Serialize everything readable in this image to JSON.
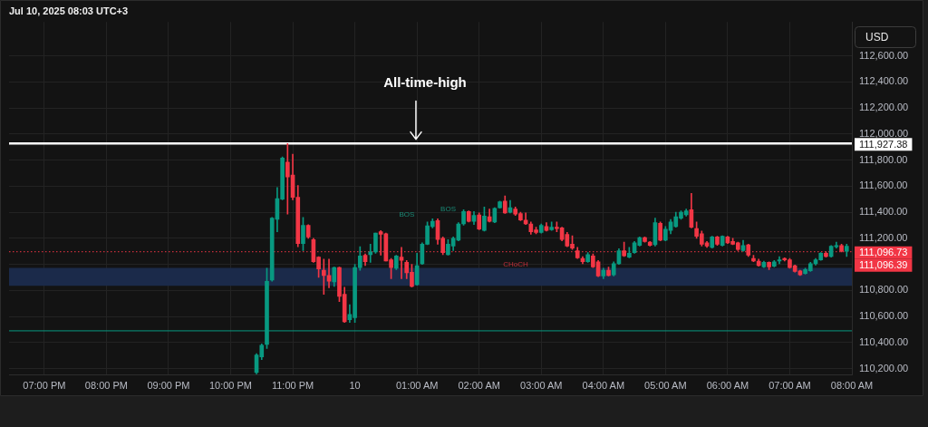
{
  "chart_data": {
    "type": "candlestick",
    "title": "Jul 10, 2025 08:03 UTC+3",
    "ylabel": "USD",
    "x": [
      "2025-07-09T22:25",
      "2025-07-09T22:30",
      "2025-07-09T22:35",
      "2025-07-09T22:40",
      "2025-07-09T22:45",
      "2025-07-09T22:50",
      "2025-07-09T22:55",
      "2025-07-09T23:00",
      "2025-07-09T23:05",
      "2025-07-09T23:10",
      "2025-07-09T23:15",
      "2025-07-09T23:20",
      "2025-07-09T23:25",
      "2025-07-09T23:30",
      "2025-07-09T23:35",
      "2025-07-09T23:40",
      "2025-07-09T23:45",
      "2025-07-09T23:50",
      "2025-07-09T23:55",
      "2025-07-10T00:00",
      "2025-07-10T00:05",
      "2025-07-10T00:10",
      "2025-07-10T00:15",
      "2025-07-10T00:20",
      "2025-07-10T00:25",
      "2025-07-10T00:30",
      "2025-07-10T00:35",
      "2025-07-10T00:40",
      "2025-07-10T00:45",
      "2025-07-10T00:50",
      "2025-07-10T00:55",
      "2025-07-10T01:00",
      "2025-07-10T01:05",
      "2025-07-10T01:10",
      "2025-07-10T01:15",
      "2025-07-10T01:20",
      "2025-07-10T01:25",
      "2025-07-10T01:30",
      "2025-07-10T01:35",
      "2025-07-10T01:40",
      "2025-07-10T01:45",
      "2025-07-10T01:50",
      "2025-07-10T01:55",
      "2025-07-10T02:00",
      "2025-07-10T02:05",
      "2025-07-10T02:10",
      "2025-07-10T02:15",
      "2025-07-10T02:20",
      "2025-07-10T02:25",
      "2025-07-10T02:30",
      "2025-07-10T02:35",
      "2025-07-10T02:40",
      "2025-07-10T02:45",
      "2025-07-10T02:50",
      "2025-07-10T02:55",
      "2025-07-10T03:00",
      "2025-07-10T03:05",
      "2025-07-10T03:10",
      "2025-07-10T03:15",
      "2025-07-10T03:20",
      "2025-07-10T03:25",
      "2025-07-10T03:30",
      "2025-07-10T03:35",
      "2025-07-10T03:40",
      "2025-07-10T03:45",
      "2025-07-10T03:50",
      "2025-07-10T03:55",
      "2025-07-10T04:00",
      "2025-07-10T04:05",
      "2025-07-10T04:10",
      "2025-07-10T04:15",
      "2025-07-10T04:20",
      "2025-07-10T04:25",
      "2025-07-10T04:30",
      "2025-07-10T04:35",
      "2025-07-10T04:40",
      "2025-07-10T04:45",
      "2025-07-10T04:50",
      "2025-07-10T04:55",
      "2025-07-10T05:00",
      "2025-07-10T05:05",
      "2025-07-10T05:10",
      "2025-07-10T05:15",
      "2025-07-10T05:20",
      "2025-07-10T05:25",
      "2025-07-10T05:30",
      "2025-07-10T05:35",
      "2025-07-10T05:40",
      "2025-07-10T05:45",
      "2025-07-10T05:50",
      "2025-07-10T05:55",
      "2025-07-10T06:00",
      "2025-07-10T06:05",
      "2025-07-10T06:10",
      "2025-07-10T06:15",
      "2025-07-10T06:20",
      "2025-07-10T06:25",
      "2025-07-10T06:30",
      "2025-07-10T06:35",
      "2025-07-10T06:40",
      "2025-07-10T06:45",
      "2025-07-10T06:50",
      "2025-07-10T06:55",
      "2025-07-10T07:00",
      "2025-07-10T07:05",
      "2025-07-10T07:10",
      "2025-07-10T07:15",
      "2025-07-10T07:20",
      "2025-07-10T07:25",
      "2025-07-10T07:30",
      "2025-07-10T07:35",
      "2025-07-10T07:40",
      "2025-07-10T07:45",
      "2025-07-10T07:50",
      "2025-07-10T07:55"
    ],
    "ohlc": [
      [
        110170,
        110315,
        110160,
        110305
      ],
      [
        110290,
        110390,
        110270,
        110380
      ],
      [
        110385,
        110970,
        110355,
        110870
      ],
      [
        110880,
        111360,
        110870,
        111355
      ],
      [
        111345,
        111590,
        111250,
        111505
      ],
      [
        111500,
        111825,
        111495,
        111815
      ],
      [
        111785,
        111927,
        111385,
        111670
      ],
      [
        111685,
        111845,
        111495,
        111515
      ],
      [
        111515,
        111605,
        111135,
        111160
      ],
      [
        111160,
        111360,
        111105,
        111300
      ],
      [
        111300,
        111305,
        111200,
        111210
      ],
      [
        111190,
        111200,
        111015,
        111020
      ],
      [
        111055,
        111060,
        110900,
        110965
      ],
      [
        110955,
        111040,
        110770,
        110915
      ],
      [
        110915,
        111040,
        110820,
        110870
      ],
      [
        110865,
        110980,
        110830,
        110975
      ],
      [
        110975,
        110980,
        110715,
        110755
      ],
      [
        110770,
        110825,
        110555,
        110560
      ],
      [
        110575,
        110690,
        110555,
        110615
      ],
      [
        110590,
        111000,
        110555,
        110975
      ],
      [
        110975,
        111135,
        110955,
        111065
      ],
      [
        111070,
        111080,
        110990,
        111020
      ],
      [
        111075,
        111155,
        111015,
        111095
      ],
      [
        111095,
        111240,
        111085,
        111240
      ],
      [
        111250,
        111260,
        111070,
        111230
      ],
      [
        111235,
        111240,
        111025,
        111025
      ],
      [
        111035,
        111045,
        110890,
        110975
      ],
      [
        110970,
        111070,
        110960,
        111065
      ],
      [
        111055,
        111130,
        110890,
        111030
      ],
      [
        111015,
        111030,
        110890,
        110935
      ],
      [
        110940,
        111000,
        110825,
        110830
      ],
      [
        110845,
        111085,
        110840,
        110990
      ],
      [
        111005,
        111165,
        111000,
        111155
      ],
      [
        111155,
        111325,
        111150,
        111295
      ],
      [
        111290,
        111350,
        111280,
        111330
      ],
      [
        111335,
        111350,
        111155,
        111190
      ],
      [
        111200,
        111210,
        111075,
        111090
      ],
      [
        111075,
        111190,
        111070,
        111155
      ],
      [
        111140,
        111210,
        111105,
        111200
      ],
      [
        111185,
        111320,
        111180,
        111310
      ],
      [
        111310,
        111420,
        111300,
        111405
      ],
      [
        111405,
        111410,
        111325,
        111330
      ],
      [
        111330,
        111405,
        111305,
        111375
      ],
      [
        111380,
        111395,
        111265,
        111270
      ],
      [
        111260,
        111440,
        111255,
        111370
      ],
      [
        111365,
        111425,
        111325,
        111330
      ],
      [
        111325,
        111435,
        111320,
        111430
      ],
      [
        111435,
        111485,
        111430,
        111480
      ],
      [
        111485,
        111525,
        111390,
        111395
      ],
      [
        111400,
        111490,
        111395,
        111435
      ],
      [
        111425,
        111440,
        111375,
        111385
      ],
      [
        111390,
        111400,
        111335,
        111340
      ],
      [
        111340,
        111395,
        111305,
        111310
      ],
      [
        111310,
        111325,
        111230,
        111250
      ],
      [
        111265,
        111285,
        111235,
        111245
      ],
      [
        111245,
        111310,
        111240,
        111300
      ],
      [
        111290,
        111320,
        111255,
        111260
      ],
      [
        111265,
        111325,
        111260,
        111285
      ],
      [
        111285,
        111325,
        111250,
        111275
      ],
      [
        111280,
        111285,
        111180,
        111190
      ],
      [
        111230,
        111245,
        111135,
        111140
      ],
      [
        111155,
        111220,
        111115,
        111125
      ],
      [
        111105,
        111130,
        111045,
        111050
      ],
      [
        111045,
        111060,
        111005,
        111020
      ],
      [
        111020,
        111090,
        111015,
        111075
      ],
      [
        111065,
        111080,
        110975,
        110980
      ],
      [
        111020,
        111030,
        110905,
        110910
      ],
      [
        110910,
        110970,
        110890,
        110955
      ],
      [
        110955,
        110980,
        110910,
        110915
      ],
      [
        110920,
        111020,
        110910,
        111005
      ],
      [
        111005,
        111120,
        111000,
        111105
      ],
      [
        111105,
        111170,
        111060,
        111065
      ],
      [
        111055,
        111130,
        111050,
        111085
      ],
      [
        111090,
        111175,
        111085,
        111165
      ],
      [
        111145,
        111210,
        111140,
        111205
      ],
      [
        111205,
        111210,
        111170,
        111175
      ],
      [
        111170,
        111175,
        111140,
        111145
      ],
      [
        111150,
        111355,
        111140,
        111320
      ],
      [
        111315,
        111325,
        111180,
        111185
      ],
      [
        111185,
        111290,
        111180,
        111270
      ],
      [
        111260,
        111345,
        111235,
        111325
      ],
      [
        111290,
        111400,
        111285,
        111365
      ],
      [
        111355,
        111410,
        111345,
        111400
      ],
      [
        111380,
        111425,
        111370,
        111410
      ],
      [
        111420,
        111545,
        111280,
        111285
      ],
      [
        111275,
        111325,
        111200,
        111215
      ],
      [
        111235,
        111255,
        111140,
        111155
      ],
      [
        111165,
        111175,
        111130,
        111140
      ],
      [
        111130,
        111215,
        111125,
        111210
      ],
      [
        111210,
        111215,
        111145,
        111155
      ],
      [
        111145,
        111220,
        111140,
        111215
      ],
      [
        111210,
        111215,
        111160,
        111165
      ],
      [
        111175,
        111200,
        111150,
        111155
      ],
      [
        111165,
        111170,
        111105,
        111115
      ],
      [
        111105,
        111185,
        111100,
        111145
      ],
      [
        111150,
        111155,
        111060,
        111070
      ],
      [
        111045,
        111070,
        111020,
        111025
      ],
      [
        111025,
        111040,
        110985,
        110990
      ],
      [
        110980,
        111025,
        110975,
        111015
      ],
      [
        111015,
        111020,
        110960,
        110980
      ],
      [
        110985,
        111030,
        110980,
        111020
      ],
      [
        111025,
        111060,
        111005,
        111035
      ],
      [
        111045,
        111050,
        111025,
        111035
      ],
      [
        111035,
        111045,
        110970,
        110975
      ],
      [
        110990,
        110995,
        110940,
        110945
      ],
      [
        110950,
        110955,
        110915,
        110920
      ],
      [
        110930,
        110970,
        110925,
        110960
      ],
      [
        110950,
        111015,
        110945,
        111005
      ],
      [
        111005,
        111045,
        110995,
        111035
      ],
      [
        111035,
        111090,
        111030,
        111085
      ],
      [
        111085,
        111095,
        111055,
        111060
      ],
      [
        111060,
        111145,
        111055,
        111140
      ],
      [
        111135,
        111170,
        111125,
        111145
      ],
      [
        111145,
        111155,
        111095,
        111100
      ],
      [
        111100,
        111155,
        111060,
        111140
      ]
    ],
    "colors": [
      "#089981",
      "#089981",
      "#089981",
      "#089981",
      "#089981",
      "#089981",
      "#f23645",
      "#f23645",
      "#f23645",
      "#089981",
      "#f23645",
      "#f23645",
      "#f23645",
      "#f23645",
      "#f23645",
      "#089981",
      "#f23645",
      "#f23645",
      "#089981",
      "#089981",
      "#089981",
      "#f23645",
      "#089981",
      "#089981",
      "#f23645",
      "#f23645",
      "#f23645",
      "#089981",
      "#f23645",
      "#f23645",
      "#f23645",
      "#089981",
      "#089981",
      "#089981",
      "#089981",
      "#f23645",
      "#f23645",
      "#089981",
      "#089981",
      "#089981",
      "#089981",
      "#f23645",
      "#089981",
      "#f23645",
      "#089981",
      "#f23645",
      "#089981",
      "#089981",
      "#f23645",
      "#089981",
      "#f23645",
      "#f23645",
      "#f23645",
      "#f23645",
      "#f23645",
      "#089981",
      "#f23645",
      "#089981",
      "#f23645",
      "#f23645",
      "#f23645",
      "#f23645",
      "#f23645",
      "#f23645",
      "#089981",
      "#f23645",
      "#f23645",
      "#089981",
      "#f23645",
      "#089981",
      "#089981",
      "#f23645",
      "#089981",
      "#089981",
      "#089981",
      "#f23645",
      "#f23645",
      "#089981",
      "#f23645",
      "#089981",
      "#089981",
      "#089981",
      "#089981",
      "#089981",
      "#f23645",
      "#f23645",
      "#f23645",
      "#f23645",
      "#089981",
      "#f23645",
      "#089981",
      "#f23645",
      "#f23645",
      "#f23645",
      "#089981",
      "#f23645",
      "#f23645",
      "#f23645",
      "#089981",
      "#f23645",
      "#089981",
      "#089981",
      "#f23645",
      "#f23645",
      "#f23645",
      "#f23645",
      "#089981",
      "#089981",
      "#089981",
      "#089981",
      "#f23645",
      "#089981",
      "#089981",
      "#f23645",
      "#089981"
    ],
    "xlim": [
      "2025-07-09T18:26",
      "2025-07-10T08:00"
    ],
    "xticks": [
      {
        "value": "2025-07-09T19:00",
        "label": "07:00 PM"
      },
      {
        "value": "2025-07-09T20:00",
        "label": "08:00 PM"
      },
      {
        "value": "2025-07-09T21:00",
        "label": "09:00 PM"
      },
      {
        "value": "2025-07-09T22:00",
        "label": "10:00 PM"
      },
      {
        "value": "2025-07-09T23:00",
        "label": "11:00 PM"
      },
      {
        "value": "2025-07-10T00:00",
        "label": "10"
      },
      {
        "value": "2025-07-10T01:00",
        "label": "01:00 AM"
      },
      {
        "value": "2025-07-10T02:00",
        "label": "02:00 AM"
      },
      {
        "value": "2025-07-10T03:00",
        "label": "03:00 AM"
      },
      {
        "value": "2025-07-10T04:00",
        "label": "04:00 AM"
      },
      {
        "value": "2025-07-10T05:00",
        "label": "05:00 AM"
      },
      {
        "value": "2025-07-10T06:00",
        "label": "06:00 AM"
      },
      {
        "value": "2025-07-10T07:00",
        "label": "07:00 AM"
      },
      {
        "value": "2025-07-10T08:00",
        "label": "08:00 AM"
      }
    ],
    "ylim": [
      110150,
      112860
    ],
    "yticks": [
      {
        "value": 110200,
        "label": "110,200.00"
      },
      {
        "value": 110400,
        "label": "110,400.00"
      },
      {
        "value": 110600,
        "label": "110,600.00"
      },
      {
        "value": 110800,
        "label": "110,800.00"
      },
      {
        "value": 111000,
        "label": null
      },
      {
        "value": 111200,
        "label": "111,200.00"
      },
      {
        "value": 111400,
        "label": "111,400.00"
      },
      {
        "value": 111600,
        "label": "111,600.00"
      },
      {
        "value": 111800,
        "label": "111,800.00"
      },
      {
        "value": 112000,
        "label": "112,000.00"
      },
      {
        "value": 112200,
        "label": "112,200.00"
      },
      {
        "value": 112400,
        "label": "112,400.00"
      },
      {
        "value": 112600,
        "label": "112,600.00"
      }
    ],
    "grid": true,
    "ref_lines": [
      {
        "axis": "y",
        "value": 111927.38,
        "label": "111,927.38",
        "color": "#ffffff",
        "line_style": "solid"
      },
      {
        "axis": "y",
        "value": 111096.73,
        "label": "111,096.73",
        "color": "#f23645",
        "line_style": "dotted"
      },
      {
        "axis": "y",
        "value": 110490,
        "color": "#089981",
        "line_style": "solid"
      }
    ],
    "bands": [
      {
        "axis": "y",
        "from": 110835,
        "to": 110973,
        "color": "#1b2a4a"
      }
    ],
    "annotations": [
      "All-time-high",
      "BOS",
      "BOS",
      "CHoCH",
      "111,096.39"
    ]
  }
}
